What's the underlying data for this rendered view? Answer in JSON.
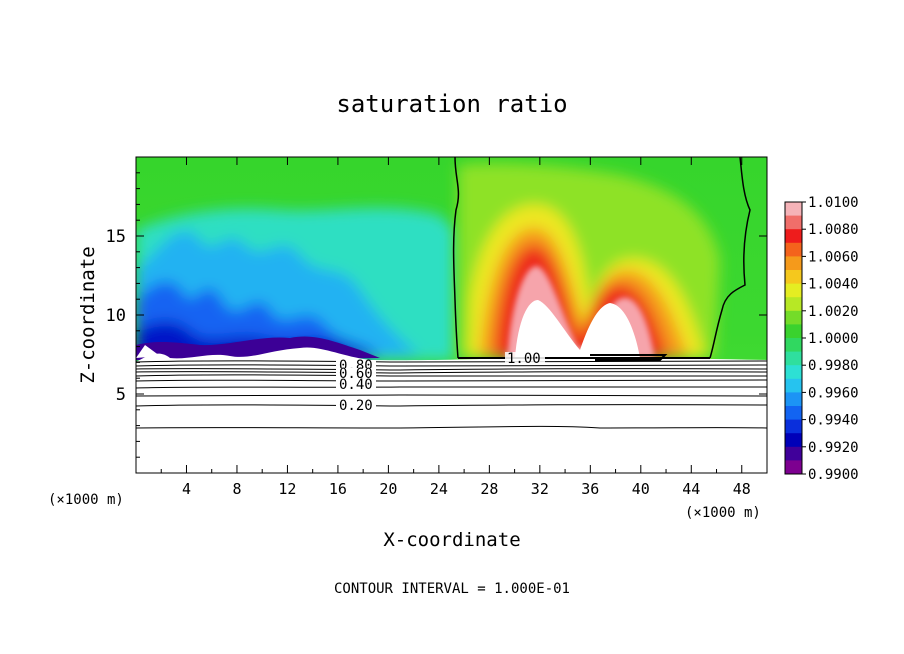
{
  "chart_data": {
    "type": "heatmap",
    "title": "saturation ratio",
    "xlabel": "X-coordinate",
    "ylabel": "Z-coordinate",
    "x_unit_label_left": "(×1000 m)",
    "x_unit_label_right": "(×1000 m)",
    "xlim": [
      0,
      50
    ],
    "ylim": [
      0,
      20
    ],
    "x_ticks": [
      4,
      8,
      12,
      16,
      20,
      24,
      28,
      32,
      36,
      40,
      44,
      48
    ],
    "x_tick_labels": [
      "4",
      "8",
      "12",
      "16",
      "20",
      "24",
      "28",
      "32",
      "36",
      "40",
      "44",
      "48"
    ],
    "y_ticks": [
      5,
      10,
      15
    ],
    "y_tick_labels": [
      "5",
      "10",
      "15"
    ],
    "colorbar": {
      "min": 0.99,
      "max": 1.01,
      "tick_labels": [
        "1.0100",
        "1.0080",
        "1.0060",
        "1.0040",
        "1.0020",
        "1.0000",
        "0.9980",
        "0.9960",
        "0.9940",
        "0.9920",
        "0.9900"
      ],
      "colors": [
        "#f5b3b8",
        "#f06e6a",
        "#ee1c1c",
        "#f4631c",
        "#f59a1b",
        "#f5c81d",
        "#e5ed22",
        "#b7e825",
        "#74dc29",
        "#3ad22e",
        "#30d860",
        "#2fdf9e",
        "#2de0d4",
        "#26c3ef",
        "#1c94f5",
        "#1264f2",
        "#0a2fdc",
        "#0000b8",
        "#40009a",
        "#7d0090"
      ]
    },
    "contour_labels": [
      "0.80",
      "0.60",
      "0.40",
      "0.20",
      "1.00"
    ],
    "contour_interval_text": "CONTOUR INTERVAL = 1.000E-01",
    "grid": false,
    "legend": "colorbar at right"
  }
}
